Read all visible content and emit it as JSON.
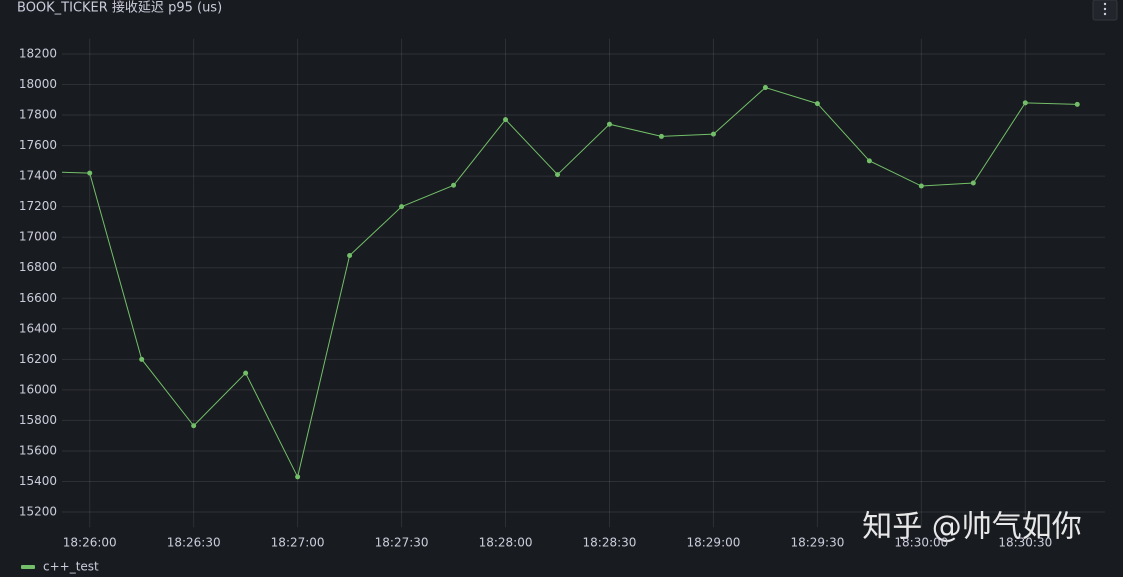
{
  "chart_data": {
    "type": "line",
    "title": "BOOK_TICKER 接收延迟 p95 (us)",
    "x": [
      "18:25:45",
      "18:26:00",
      "18:26:15",
      "18:26:30",
      "18:26:45",
      "18:27:00",
      "18:27:15",
      "18:27:30",
      "18:27:45",
      "18:28:00",
      "18:28:15",
      "18:28:30",
      "18:28:45",
      "18:29:00",
      "18:29:15",
      "18:29:30",
      "18:29:45",
      "18:30:00",
      "18:30:15",
      "18:30:30",
      "18:30:45"
    ],
    "series": [
      {
        "name": "c++_test",
        "color": "#73bf69",
        "values": [
          17430,
          17420,
          16200,
          15765,
          16110,
          15430,
          16880,
          17200,
          17340,
          17770,
          17410,
          17740,
          17660,
          17675,
          17980,
          17875,
          17500,
          17335,
          17355,
          17880,
          17870
        ]
      }
    ],
    "xlim": [
      "18:25:52",
      "18:30:53"
    ],
    "xticks": [
      "18:26:00",
      "18:26:30",
      "18:27:00",
      "18:27:30",
      "18:28:00",
      "18:28:30",
      "18:29:00",
      "18:29:30",
      "18:30:00",
      "18:30:30"
    ],
    "ylim": [
      15100,
      18300
    ],
    "yticks": [
      15200,
      15400,
      15600,
      15800,
      16000,
      16200,
      16400,
      16600,
      16800,
      17000,
      17200,
      17400,
      17600,
      17800,
      18000,
      18200
    ],
    "grid": true,
    "legend": "bottom-left",
    "watermark": "知乎 @帅气如你"
  }
}
